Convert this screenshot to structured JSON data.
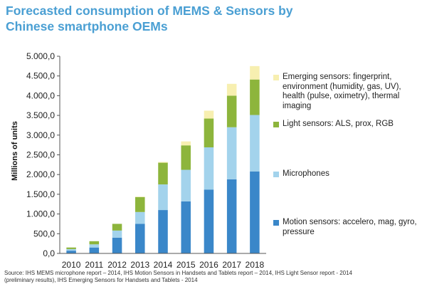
{
  "title_lines": [
    "Forecasted consumption of MEMS & Sensors by",
    "Chinese smartphone OEMs"
  ],
  "source_lines": [
    "Source: IHS MEMS microphone report – 2014, IHS Motion Sensors in Handsets and Tablets report – 2014, IHS Light Sensor report - 2014",
    "(preliminary results), IHS Emerging Sensors for Handsets and Tablets -  2014"
  ],
  "chart_data": {
    "type": "bar",
    "stacked": true,
    "categories": [
      "2010",
      "2011",
      "2012",
      "2013",
      "2014",
      "2015",
      "2016",
      "2017",
      "2018"
    ],
    "ylabel": "Millions of units",
    "xlabel": "",
    "ylim": [
      0,
      5000
    ],
    "yticks": [
      "0,0",
      "500,0",
      "1.000,0",
      "1.500,0",
      "2.000,0",
      "2.500,0",
      "3.000,0",
      "3.500,0",
      "4.000,0",
      "4.500,0",
      "5.000,0"
    ],
    "ytick_values": [
      0,
      500,
      1000,
      1500,
      2000,
      2500,
      3000,
      3500,
      4000,
      4500,
      5000
    ],
    "grid": false,
    "legend_position": "right",
    "series": [
      {
        "name": "Motion sensors: accelero, mag, gyro, pressure",
        "color": "#3a87c9",
        "values": [
          70,
          150,
          400,
          750,
          1100,
          1320,
          1620,
          1880,
          2080
        ]
      },
      {
        "name": "Microphones",
        "color": "#a3d3ec",
        "values": [
          40,
          80,
          180,
          300,
          650,
          800,
          1070,
          1320,
          1430
        ]
      },
      {
        "name": "Light sensors: ALS, prox, RGB",
        "color": "#8db53c",
        "values": [
          40,
          80,
          170,
          380,
          550,
          620,
          730,
          800,
          900
        ]
      },
      {
        "name": "Emerging sensors: fingerprint, environment (humidity, gas, UV), health (pulse, oximetry), thermal imaging",
        "color": "#f7efb0",
        "values": [
          0,
          0,
          0,
          10,
          20,
          100,
          200,
          300,
          340
        ]
      }
    ]
  }
}
